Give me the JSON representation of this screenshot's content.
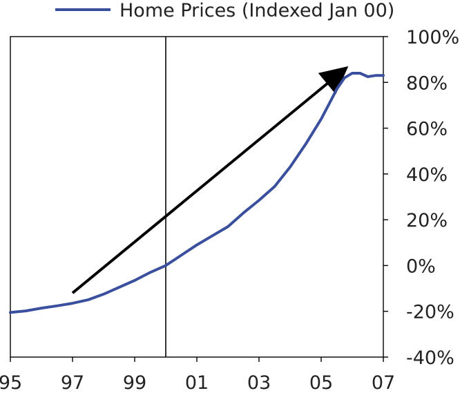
{
  "chart_data": {
    "type": "line",
    "title": "",
    "xlabel": "",
    "ylabel": "",
    "x_tick_labels": [
      "95",
      "97",
      "99",
      "01",
      "03",
      "05",
      "07"
    ],
    "x_tick_values": [
      1995,
      1997,
      1999,
      2001,
      2003,
      2005,
      2007
    ],
    "xlim": [
      1995,
      2007
    ],
    "y_tick_labels": [
      "-40%",
      "-20%",
      "0%",
      "20%",
      "40%",
      "60%",
      "80%",
      "100%"
    ],
    "y_tick_values": [
      -40,
      -20,
      0,
      20,
      40,
      60,
      80,
      100
    ],
    "ylim": [
      -40,
      100
    ],
    "y_axis_side": "right",
    "grid": false,
    "legend": {
      "placement": "top",
      "entries": [
        {
          "label": "Home Prices (Indexed Jan 00)",
          "color": "#3a4f9e"
        }
      ]
    },
    "series": [
      {
        "name": "Home Prices (Indexed Jan 00)",
        "color": "#3a4f9e",
        "x": [
          1995.0,
          1995.5,
          1996.0,
          1996.5,
          1997.0,
          1997.5,
          1998.0,
          1998.5,
          1999.0,
          1999.5,
          2000.0,
          2000.5,
          2001.0,
          2001.5,
          2002.0,
          2002.5,
          2003.0,
          2003.5,
          2004.0,
          2004.5,
          2005.0,
          2005.25,
          2005.5,
          2005.75,
          2006.0,
          2006.25,
          2006.5,
          2006.75,
          2007.0
        ],
        "values": [
          -20.5,
          -19.8,
          -18.6,
          -17.6,
          -16.5,
          -15.0,
          -12.5,
          -9.5,
          -6.5,
          -3.0,
          0.0,
          4.5,
          9.0,
          13.0,
          17.0,
          23.0,
          28.5,
          34.5,
          43.0,
          53.0,
          64.0,
          70.5,
          77.0,
          82.0,
          84.0,
          84.0,
          82.5,
          83.0,
          83.0
        ]
      }
    ],
    "annotations": [
      {
        "type": "vertical-line",
        "x": 2000.0,
        "color": "#000000"
      },
      {
        "type": "arrow",
        "from": [
          1997.0,
          -12.0
        ],
        "to": [
          2005.6,
          84.0
        ],
        "color": "#000000"
      }
    ]
  }
}
